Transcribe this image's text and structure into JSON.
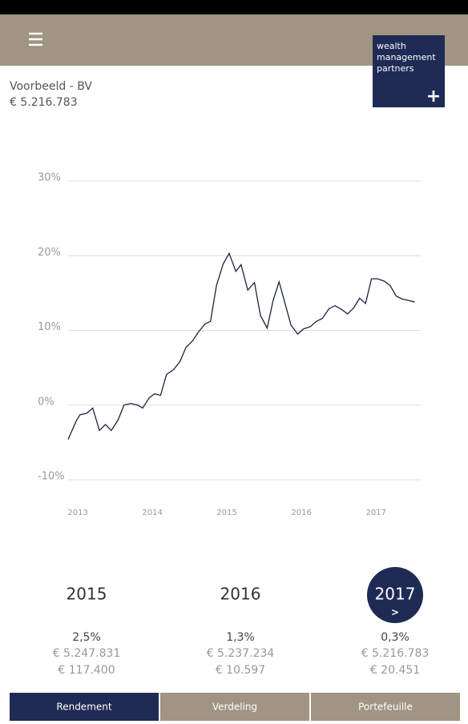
{
  "header": {
    "title": "Voorbeeld - BV",
    "amount": "€ 5.216.783",
    "logo": [
      "wealth",
      "management",
      "partners"
    ],
    "logo_mark": "+"
  },
  "chart_data": {
    "type": "line",
    "color": "#1c2340",
    "grid": true,
    "xlim": [
      2012.87,
      2017.6
    ],
    "xticks": [
      2013,
      2014,
      2015,
      2016,
      2017
    ],
    "ylim": [
      -10,
      30
    ],
    "yticks": [
      {
        "value": -10,
        "label": "-10%"
      },
      {
        "value": 0,
        "label": "0%"
      },
      {
        "value": 10,
        "label": "10%"
      },
      {
        "value": 20,
        "label": "20%"
      },
      {
        "value": 30,
        "label": "30%"
      }
    ],
    "series": [
      {
        "name": "Rendement",
        "color": "#1c2340",
        "x": [
          2012.87,
          2012.98,
          2013.03,
          2013.12,
          2013.2,
          2013.29,
          2013.37,
          2013.45,
          2013.54,
          2013.62,
          2013.71,
          2013.8,
          2013.87,
          2013.96,
          2014.03,
          2014.11,
          2014.19,
          2014.28,
          2014.37,
          2014.45,
          2014.54,
          2014.62,
          2014.71,
          2014.78,
          2014.86,
          2014.95,
          2015.03,
          2015.12,
          2015.19,
          2015.28,
          2015.37,
          2015.45,
          2015.54,
          2015.62,
          2015.7,
          2015.78,
          2015.86,
          2015.95,
          2016.03,
          2016.12,
          2016.2,
          2016.28,
          2016.37,
          2016.45,
          2016.54,
          2016.62,
          2016.7,
          2016.78,
          2016.86,
          2016.94,
          2017.02,
          2017.11,
          2017.19,
          2017.27,
          2017.35,
          2017.44,
          2017.52
        ],
        "values": [
          -4.6,
          -2.1,
          -1.3,
          -1.1,
          -0.4,
          -3.4,
          -2.6,
          -3.4,
          -2.0,
          0,
          0.2,
          0,
          -0.4,
          1.0,
          1.5,
          1.3,
          4.1,
          4.7,
          5.8,
          7.7,
          8.6,
          9.8,
          10.9,
          11.2,
          16.0,
          18.9,
          20.3,
          17.9,
          18.8,
          15.4,
          16.4,
          12.0,
          10.3,
          14.0,
          16.5,
          13.6,
          10.7,
          9.5,
          10.2,
          10.5,
          11.2,
          11.6,
          12.9,
          13.3,
          12.8,
          12.2,
          13.0,
          14.3,
          13.6,
          16.9,
          16.9,
          16.6,
          16.0,
          14.6,
          14.2,
          14.0,
          13.8
        ]
      }
    ]
  },
  "summary": [
    {
      "year": "2015",
      "return": "2,5%",
      "value": "€ 5.247.831",
      "change": "€ 117.400"
    },
    {
      "year": "2016",
      "return": "1,3%",
      "value": "€ 5.237.234",
      "change": "€ 10.597"
    },
    {
      "year": "2017",
      "more": ">",
      "return": "0,3%",
      "value": "€ 5.216.783",
      "change": "€ 20.451",
      "active": true
    }
  ],
  "tabs": [
    {
      "label": "Rendement",
      "active": true
    },
    {
      "label": "Verdeling"
    },
    {
      "label": "Portefeuille"
    }
  ]
}
